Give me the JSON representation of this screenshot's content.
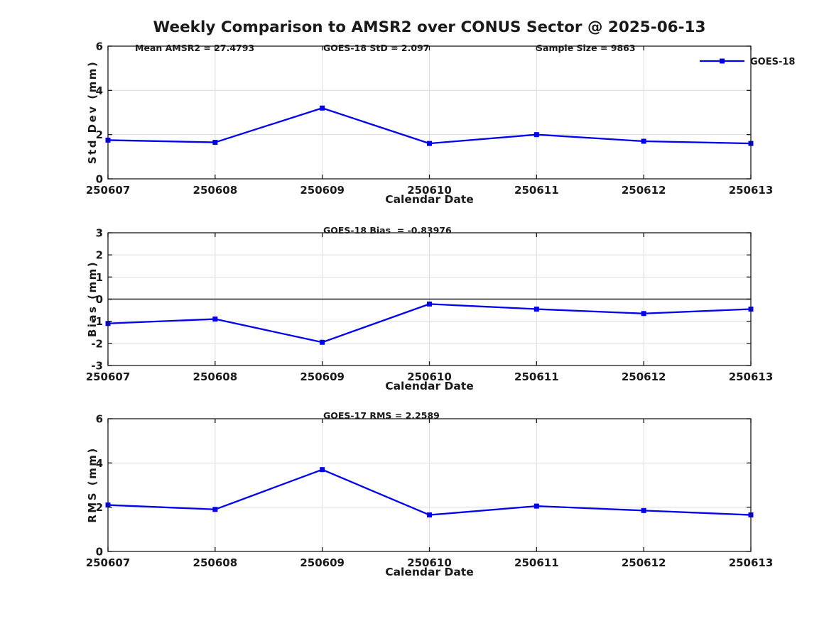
{
  "figure_title": "Weekly Comparison to AMSR2 over CONUS Sector @ 2025-06-13",
  "legend": {
    "label": "GOES-18"
  },
  "colors": {
    "series_line": "#0000ee",
    "grid": "#dcdcdc",
    "axis": "#1a1a1a",
    "text": "#1a1a1a",
    "zero_line": "#404040",
    "background": "#ffffff"
  },
  "chart_data": [
    {
      "type": "line",
      "annotations": [
        {
          "text": "Mean AMSR2 = 27.4793"
        },
        {
          "text": "GOES-18 StD = 2.097"
        },
        {
          "text": "Sample Size = 9863"
        }
      ],
      "categories": [
        "250607",
        "250608",
        "250609",
        "250610",
        "250611",
        "250612",
        "250613"
      ],
      "series": [
        {
          "name": "GOES-18",
          "marker": "square",
          "values": [
            1.75,
            1.65,
            3.2,
            1.6,
            2.0,
            1.7,
            1.6
          ]
        }
      ],
      "xlabel": "Calendar Date",
      "ylabel": "Std Dev (mm)",
      "ylim": [
        0,
        6
      ],
      "yticks": [
        0,
        2,
        4,
        6
      ],
      "grid": true,
      "show_legend": true,
      "legend_position": "top-right",
      "zero_line": false
    },
    {
      "type": "line",
      "annotations": [
        {
          "text": "GOES-18 Bias  = -0.83976"
        }
      ],
      "categories": [
        "250607",
        "250608",
        "250609",
        "250610",
        "250611",
        "250612",
        "250613"
      ],
      "series": [
        {
          "name": "GOES-18",
          "marker": "square",
          "values": [
            -1.1,
            -0.9,
            -1.95,
            -0.22,
            -0.45,
            -0.65,
            -0.45
          ]
        }
      ],
      "xlabel": "Calendar Date",
      "ylabel": "Bias (mm)",
      "ylim": [
        -3,
        3
      ],
      "yticks": [
        -3,
        -2,
        -1,
        0,
        1,
        2,
        3
      ],
      "grid": true,
      "show_legend": false,
      "zero_line": true
    },
    {
      "type": "line",
      "annotations": [
        {
          "text": "GOES-17 RMS = 2.2589"
        }
      ],
      "categories": [
        "250607",
        "250608",
        "250609",
        "250610",
        "250611",
        "250612",
        "250613"
      ],
      "series": [
        {
          "name": "GOES-18",
          "marker": "square",
          "values": [
            2.1,
            1.9,
            3.7,
            1.65,
            2.05,
            1.85,
            1.65
          ]
        }
      ],
      "xlabel": "Calendar Date",
      "ylabel": "RMS (mm)",
      "ylim": [
        0,
        6
      ],
      "yticks": [
        0,
        2,
        4,
        6
      ],
      "grid": true,
      "show_legend": false,
      "zero_line": false
    }
  ]
}
